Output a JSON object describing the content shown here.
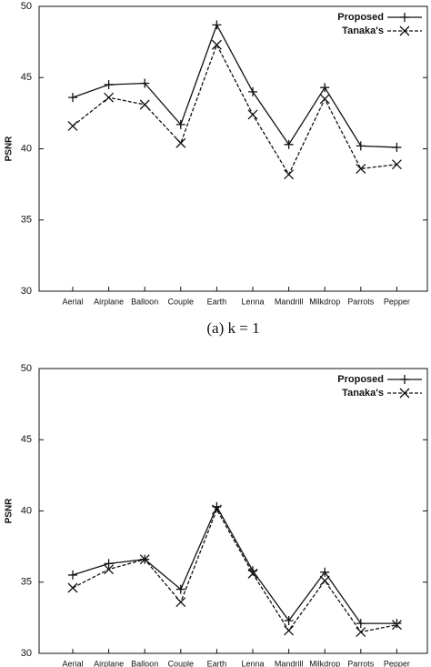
{
  "chart_data": [
    {
      "type": "line",
      "y_label": "PSNR",
      "caption": "(a) k = 1",
      "categories": [
        "Aerial",
        "Airplane",
        "Balloon",
        "Couple",
        "Earth",
        "Lenna",
        "Mandrill",
        "Milkdrop",
        "Parrots",
        "Pepper"
      ],
      "series": [
        {
          "name": "Proposed",
          "color": "#111111",
          "dash": "solid",
          "marker": "plus",
          "values": [
            43.6,
            44.5,
            44.6,
            41.7,
            48.7,
            44.0,
            40.3,
            44.3,
            40.2,
            40.1
          ]
        },
        {
          "name": "Tanaka's",
          "color": "#111111",
          "dash": "dashed",
          "marker": "cross",
          "values": [
            41.6,
            43.6,
            43.1,
            40.4,
            47.3,
            42.4,
            38.2,
            43.5,
            38.6,
            38.9
          ]
        }
      ],
      "ylim": [
        30,
        50
      ],
      "yticks": [
        30,
        35,
        40,
        45,
        50
      ],
      "legend": "top-right"
    },
    {
      "type": "line",
      "y_label": "PSNR",
      "categories": [
        "Aerial",
        "Airplane",
        "Balloon",
        "Couple",
        "Earth",
        "Lenna",
        "Mandrill",
        "Milkdrop",
        "Parrots",
        "Pepper"
      ],
      "series": [
        {
          "name": "Proposed",
          "color": "#111111",
          "dash": "solid",
          "marker": "plus",
          "values": [
            35.5,
            36.3,
            36.6,
            34.5,
            40.3,
            35.8,
            32.3,
            35.7,
            32.1,
            32.1
          ]
        },
        {
          "name": "Tanaka's",
          "color": "#111111",
          "dash": "dashed",
          "marker": "cross",
          "values": [
            34.6,
            35.9,
            36.6,
            33.6,
            40.1,
            35.6,
            31.6,
            35.1,
            31.5,
            32.0
          ]
        }
      ],
      "ylim": [
        30,
        50
      ],
      "yticks": [
        30,
        35,
        40,
        45,
        50
      ],
      "legend": "top-right"
    }
  ]
}
